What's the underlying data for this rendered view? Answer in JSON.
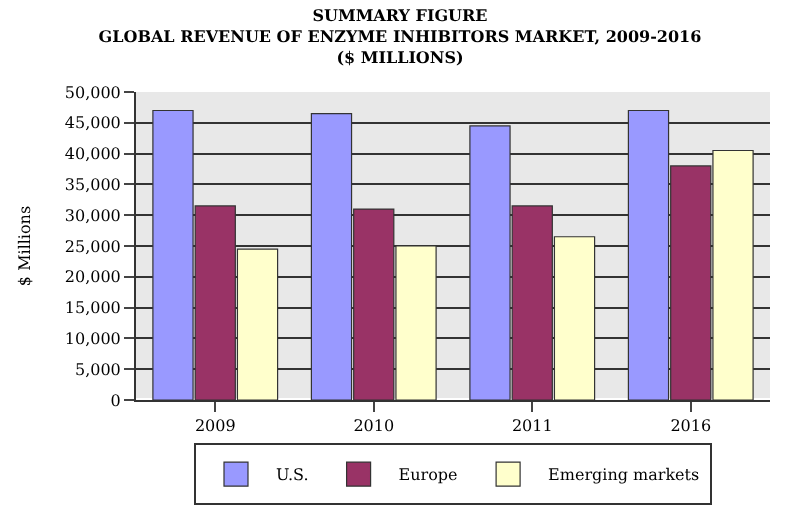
{
  "chart_data": {
    "type": "bar",
    "title": "SUMMARY FIGURE\nGLOBAL REVENUE OF ENZYME INHIBITORS MARKET, 2009-2016\n($ MILLIONS)",
    "ylabel": "$ Millions",
    "categories": [
      "2009",
      "2010",
      "2011",
      "2016"
    ],
    "series": [
      {
        "name": "U.S.",
        "color": "#9999ff",
        "values": [
          47000,
          46500,
          44500,
          47000
        ]
      },
      {
        "name": "Europe",
        "color": "#993366",
        "values": [
          31500,
          31000,
          31500,
          38000
        ]
      },
      {
        "name": "Emerging markets",
        "color": "#ffffcc",
        "values": [
          24500,
          25000,
          26500,
          40500
        ]
      }
    ],
    "ylim": [
      0,
      50000
    ],
    "yticks": [
      {
        "value": 0,
        "label": "0"
      },
      {
        "value": 5000,
        "label": "5,000"
      },
      {
        "value": 10000,
        "label": "10,000"
      },
      {
        "value": 15000,
        "label": "15,000"
      },
      {
        "value": 20000,
        "label": "20,000"
      },
      {
        "value": 25000,
        "label": "25,000"
      },
      {
        "value": 30000,
        "label": "30,000"
      },
      {
        "value": 35000,
        "label": "35,000"
      },
      {
        "value": 40000,
        "label": "40,000"
      },
      {
        "value": 45000,
        "label": "45,000"
      },
      {
        "value": 50000,
        "label": "50,000"
      }
    ],
    "grid": "y",
    "legend": "bottom"
  }
}
